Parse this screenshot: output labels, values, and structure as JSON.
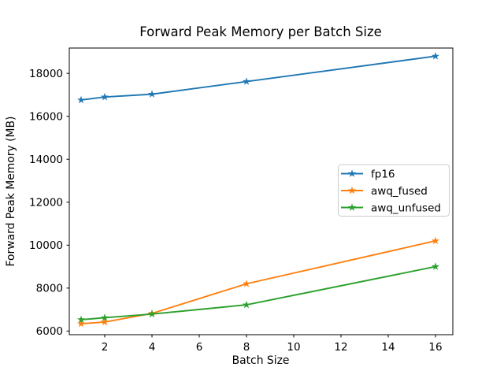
{
  "chart_data": {
    "type": "line",
    "title": "Forward Peak Memory per Batch Size",
    "xlabel": "Batch Size",
    "ylabel": "Forward Peak Memory (MB)",
    "x": [
      1,
      2,
      4,
      8,
      16
    ],
    "series": [
      {
        "name": "fp16",
        "color": "#1f77b4",
        "values": [
          16760,
          16900,
          17030,
          17620,
          18800
        ]
      },
      {
        "name": "awq_fused",
        "color": "#ff7f0e",
        "values": [
          6340,
          6420,
          6820,
          8200,
          10200
        ]
      },
      {
        "name": "awq_unfused",
        "color": "#2ca02c",
        "values": [
          6530,
          6620,
          6790,
          7220,
          9000
        ]
      }
    ],
    "x_ticks": [
      2,
      4,
      6,
      8,
      10,
      12,
      14,
      16
    ],
    "y_ticks": [
      6000,
      8000,
      10000,
      12000,
      14000,
      16000,
      18000
    ],
    "xlim": [
      0.5,
      16.733
    ],
    "ylim": [
      5830,
      19180
    ],
    "marker": "star",
    "grid": false,
    "legend_position": "center right",
    "background_color": "#ffffff",
    "spine_color": "#000000",
    "legend_border_color": "#cccccc"
  }
}
